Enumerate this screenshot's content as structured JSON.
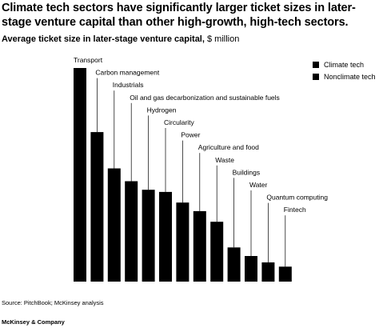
{
  "header": {
    "title": "Climate tech sectors have significantly larger ticket sizes in later-stage venture capital than other high-growth, high-tech sectors.",
    "subtitle_bold": "Average ticket size in later-stage venture capital,",
    "subtitle_unit": " $ million"
  },
  "legend": {
    "items": [
      {
        "label": "Climate tech",
        "color": "#000000"
      },
      {
        "label": "Nonclimate tech",
        "color": "#000000"
      }
    ]
  },
  "footer": {
    "source": "Source: PitchBook; McKinsey analysis",
    "brand": "McKinsey & Company"
  },
  "chart_data": {
    "type": "bar",
    "categories": [
      "Transport",
      "Carbon management",
      "Industrials",
      "Oil and gas decarbonization and sustainable fuels",
      "Hydrogen",
      "Circularity",
      "Power",
      "Agriculture and food",
      "Waste",
      "Buildings",
      "Water",
      "Quantum computing",
      "Fintech"
    ],
    "values": [
      100,
      70,
      53,
      47,
      43,
      42,
      37,
      33,
      28,
      16,
      12,
      9,
      7
    ],
    "bar_color": "#000000",
    "ylim": [
      0,
      100
    ]
  }
}
